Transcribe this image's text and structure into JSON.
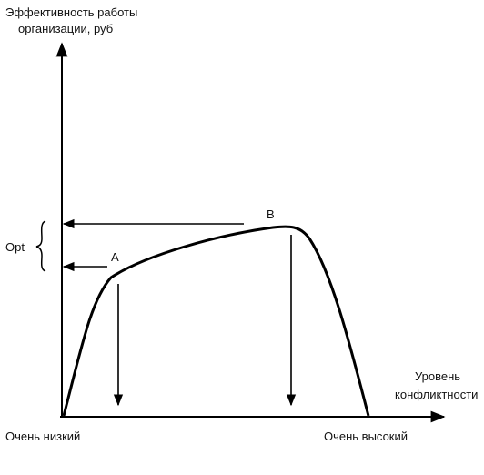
{
  "y_axis": {
    "label_lines": [
      "Эффективность работы",
      "организации, руб"
    ]
  },
  "x_axis": {
    "label_lines": [
      "Уровень",
      "конфликтности"
    ],
    "low": "Очень низкий",
    "high": "Очень высокий"
  },
  "opt_label": "Opt",
  "points": {
    "a": "A",
    "b": "B"
  }
}
